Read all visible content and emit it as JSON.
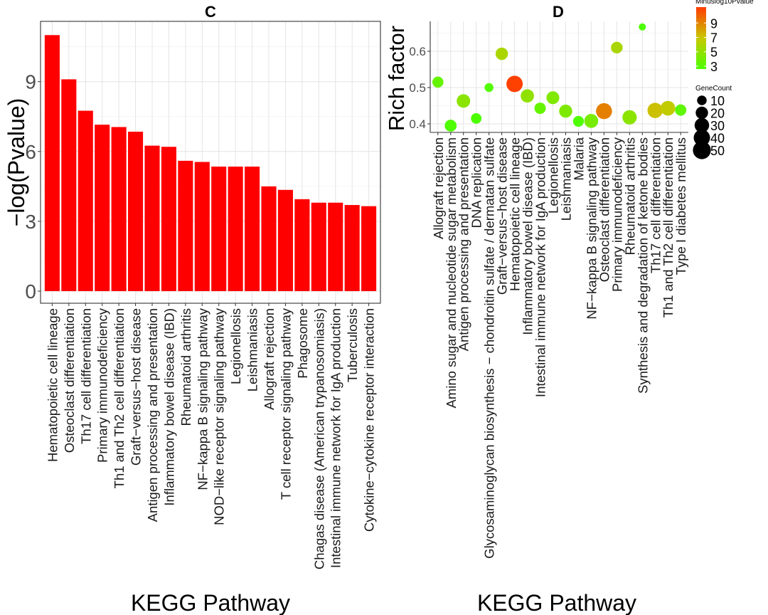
{
  "chart_data": [
    {
      "panel": "C",
      "type": "bar",
      "title": "C",
      "xlabel": "KEGG Pathway",
      "ylabel": "−log(Pvalue)",
      "ylim": [
        -0.5,
        11.5
      ],
      "yticks": [
        "0",
        "3",
        "6",
        "9"
      ],
      "grid": true,
      "bar_color": "#ff0000",
      "categories": [
        "Hematopoietic cell lineage",
        "Osteoclast differentiation",
        "Th17 cell differentiation",
        "Primary immunodeficiency",
        "Th1 and Th2 cell differentiation",
        "Graft−versus−host disease",
        "Antigen processing and presentation",
        "Inflammatory bowel disease (IBD)",
        "Rheumatoid arthritis",
        "NF−kappa B signaling pathway",
        "NOD−like receptor signaling pathway",
        "Legionellosis",
        "Leishmaniasis",
        "Allograft rejection",
        "T cell receptor signaling pathway",
        "Phagosome",
        "Chagas disease (American trypanosomiasis)",
        "Intestinal immune network for IgA production",
        "Tuberculosis",
        "Cytokine−cytokine receptor interaction"
      ],
      "values": [
        11.0,
        9.1,
        7.75,
        7.15,
        7.05,
        6.85,
        6.25,
        6.2,
        5.6,
        5.55,
        5.35,
        5.35,
        5.35,
        4.5,
        4.35,
        3.95,
        3.8,
        3.8,
        3.7,
        3.65
      ]
    },
    {
      "panel": "D",
      "type": "scatter",
      "title": "D",
      "xlabel": "KEGG Pathway",
      "ylabel": "Rich factor",
      "ylim": [
        0.38,
        0.68
      ],
      "yticks": [
        "0.4",
        "0.5",
        "0.6"
      ],
      "grid": true,
      "color_legend": {
        "title": "Minuslog10Pvalue",
        "ticks": [
          "9",
          "7",
          "5",
          "3"
        ],
        "low_color": "#4cff00",
        "mid_color": "#c8c800",
        "high_color": "#ff3c00"
      },
      "size_legend": {
        "title": "GeneCount",
        "ticks": [
          "10",
          "20",
          "30",
          "40",
          "50"
        ]
      },
      "categories": [
        "Allograft rejection",
        "Amino sugar and nucleotide sugar metabolism",
        "Antigen processing and presentation",
        "DNA replication",
        "Glycosaminoglycan biosynthesis − chondroitin sulfate / dermatan sulfate",
        "Graft−versus−host disease",
        "Hematopoietic cell lineage",
        "Inflammatory bowel disease (IBD)",
        "Intestinal immune network for IgA production",
        "Legionellosis",
        "Leishmaniasis",
        "Malaria",
        "NF−kappa B signaling pathway",
        "Osteoclast differentiation",
        "Primary immunodeficiency",
        "Rheumatoid arthritis",
        "Synthesis and degradation of ketone bodies",
        "Th17 cell differentiation",
        "Th1 and Th2 cell differentiation",
        "Type I diabetes mellitus"
      ],
      "points": [
        {
          "rich": 0.515,
          "minuslog10p": 3.8,
          "genecount": 15
        },
        {
          "rich": 0.395,
          "minuslog10p": 3.1,
          "genecount": 18
        },
        {
          "rich": 0.463,
          "minuslog10p": 5.0,
          "genecount": 25
        },
        {
          "rich": 0.415,
          "minuslog10p": 3.0,
          "genecount": 13
        },
        {
          "rich": 0.5,
          "minuslog10p": 3.2,
          "genecount": 8
        },
        {
          "rich": 0.593,
          "minuslog10p": 6.0,
          "genecount": 20
        },
        {
          "rich": 0.51,
          "minuslog10p": 10.9,
          "genecount": 40
        },
        {
          "rich": 0.477,
          "minuslog10p": 5.2,
          "genecount": 24
        },
        {
          "rich": 0.443,
          "minuslog10p": 3.8,
          "genecount": 16
        },
        {
          "rich": 0.472,
          "minuslog10p": 4.7,
          "genecount": 22
        },
        {
          "rich": 0.435,
          "minuslog10p": 4.6,
          "genecount": 23
        },
        {
          "rich": 0.407,
          "minuslog10p": 3.1,
          "genecount": 14
        },
        {
          "rich": 0.408,
          "minuslog10p": 4.4,
          "genecount": 27
        },
        {
          "rich": 0.435,
          "minuslog10p": 9.1,
          "genecount": 38
        },
        {
          "rich": 0.61,
          "minuslog10p": 6.0,
          "genecount": 17
        },
        {
          "rich": 0.418,
          "minuslog10p": 5.0,
          "genecount": 29
        },
        {
          "rich": 0.667,
          "minuslog10p": 3.0,
          "genecount": 4
        },
        {
          "rich": 0.437,
          "minuslog10p": 7.2,
          "genecount": 34
        },
        {
          "rich": 0.443,
          "minuslog10p": 6.8,
          "genecount": 31
        },
        {
          "rich": 0.438,
          "minuslog10p": 3.6,
          "genecount": 16
        }
      ]
    }
  ]
}
